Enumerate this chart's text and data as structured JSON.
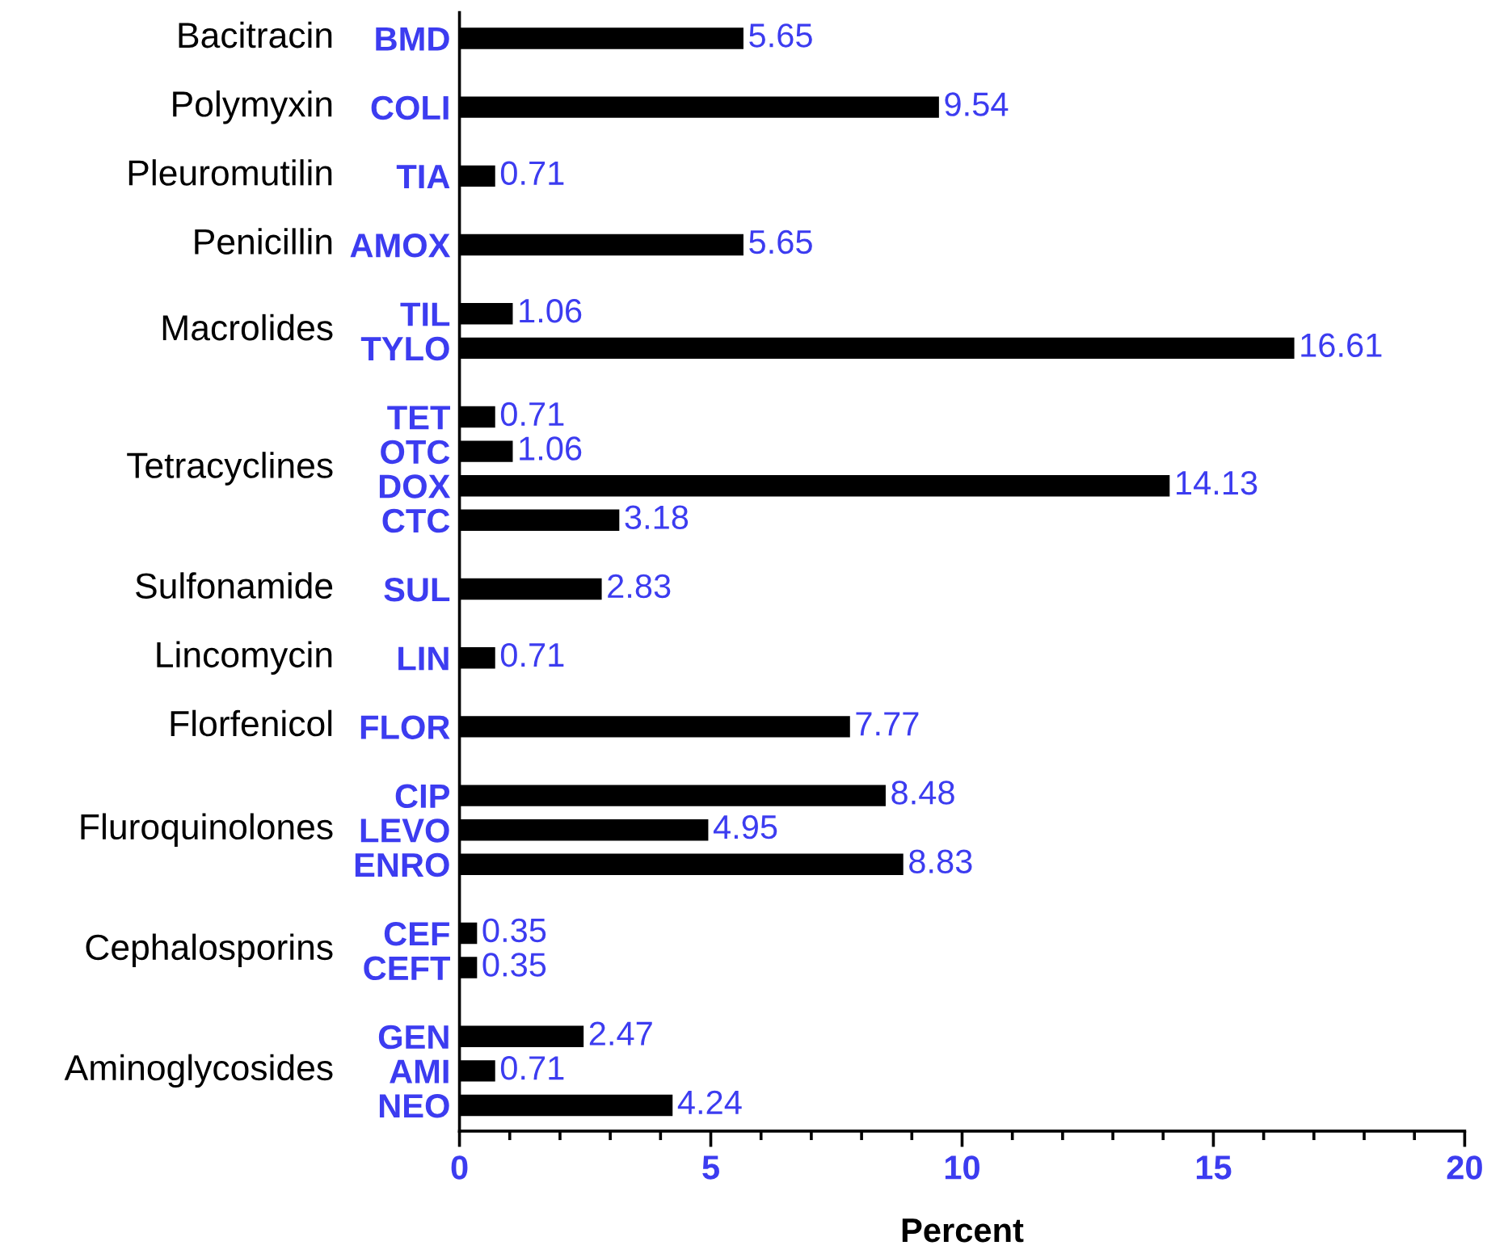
{
  "chart_data": {
    "type": "bar",
    "orientation": "horizontal",
    "xlabel": "Percent",
    "categories": [
      "BMD",
      null,
      "COLI",
      null,
      "TIA",
      null,
      "AMOX",
      null,
      "TIL",
      "TYLO",
      null,
      "TET",
      "OTC",
      "DOX",
      "CTC",
      null,
      "SUL",
      null,
      "LIN",
      null,
      "FLOR",
      null,
      "CIP",
      "LEVO",
      "ENRO",
      null,
      "CEF",
      "CEFT",
      null,
      "GEN",
      "AMI",
      "NEO"
    ],
    "values": [
      5.65,
      null,
      9.54,
      null,
      0.71,
      null,
      5.65,
      null,
      1.06,
      16.61,
      null,
      0.71,
      1.06,
      14.13,
      3.18,
      null,
      2.83,
      null,
      0.71,
      null,
      7.77,
      null,
      8.48,
      4.95,
      8.83,
      null,
      0.35,
      0.35,
      null,
      2.47,
      0.71,
      4.24
    ],
    "color": "#000000",
    "data_labels": true,
    "annotations": [
      "Bacitracin",
      "Polymyxin",
      "Pleuromutilin",
      "Penicillin",
      "Macrolides",
      "Tetracyclines",
      "Sulfonamide",
      "Lincomycin",
      "Florfenicol",
      "Fluroquinolones",
      "Cephalosporins",
      "Aminoglycosides"
    ],
    "xlim": [
      0,
      20
    ],
    "xticks": [
      0,
      {
        "value": 1,
        "label": null
      },
      {
        "value": 2,
        "label": null
      },
      {
        "value": 3,
        "label": null
      },
      {
        "value": 4,
        "label": null
      },
      5,
      {
        "value": 6,
        "label": null
      },
      {
        "value": 7,
        "label": null
      },
      {
        "value": 8,
        "label": null
      },
      {
        "value": 9,
        "label": null
      },
      10,
      {
        "value": 11,
        "label": null
      },
      {
        "value": 12,
        "label": null
      },
      {
        "value": 13,
        "label": null
      },
      {
        "value": 14,
        "label": null
      },
      15,
      {
        "value": 16,
        "label": null
      },
      {
        "value": 17,
        "label": null
      },
      {
        "value": 18,
        "label": null
      },
      {
        "value": 19,
        "label": null
      },
      20
    ],
    "grid": false,
    "legend": false
  }
}
